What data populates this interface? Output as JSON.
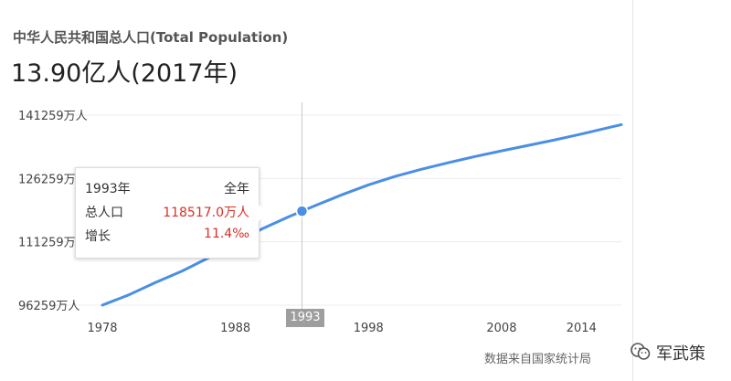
{
  "header": {
    "title": "中华人民共和国总人口(Total Population)",
    "value": "13.90亿人(2017年)"
  },
  "chart_data": {
    "type": "line",
    "title": "中华人民共和国总人口(Total Population)",
    "xlabel": "",
    "ylabel": "",
    "xlim": [
      1978,
      2017
    ],
    "ylim": [
      96259,
      141259
    ],
    "y_ticks": [
      "141259万人",
      "126259万人",
      "111259万人",
      "96259万人"
    ],
    "x_ticks": [
      1978,
      1988,
      1993,
      1998,
      2008,
      2014
    ],
    "grid": true,
    "series": [
      {
        "color": "#4a8ee6",
        "x": [
          1978,
          1980,
          1982,
          1984,
          1986,
          1988,
          1990,
          1992,
          1993,
          1994,
          1996,
          1998,
          2000,
          2002,
          2004,
          2006,
          2008,
          2010,
          2012,
          2014,
          2016,
          2017
        ],
        "y": [
          96259,
          98705,
          101654,
          104357,
          107507,
          111026,
          114333,
          117171,
          118517,
          119850,
          122389,
          124761,
          126743,
          128453,
          129988,
          131448,
          132802,
          134091,
          135404,
          136782,
          138271,
          139008
        ]
      }
    ]
  },
  "tooltip": {
    "year": "1993年",
    "period": "全年",
    "pop_label": "总人口",
    "pop_value": "118517.0万人",
    "growth_label": "增长",
    "growth_value": "11.4‰"
  },
  "hover_label": "1993",
  "source": "数据来自国家统计局",
  "watermark": {
    "text": "军武策",
    "icon": "wechat-icon"
  }
}
